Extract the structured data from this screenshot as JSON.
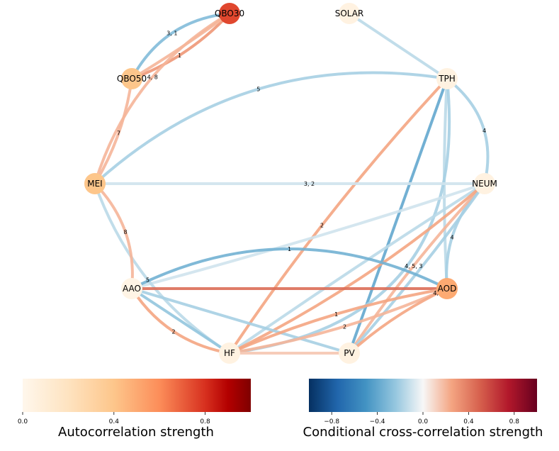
{
  "nodes": [
    {
      "id": "QBO30",
      "label": "QBO30",
      "auto": 0.75
    },
    {
      "id": "SOLAR",
      "label": "SOLAR",
      "auto": 0.05
    },
    {
      "id": "QBO50",
      "label": "QBO50",
      "auto": 0.4
    },
    {
      "id": "TPH",
      "label": "TPH",
      "auto": 0.05
    },
    {
      "id": "MEI",
      "label": "MEI",
      "auto": 0.4
    },
    {
      "id": "NEUM",
      "label": "NEUM",
      "auto": 0.05
    },
    {
      "id": "AAO",
      "label": "AAO",
      "auto": 0.03
    },
    {
      "id": "AOD",
      "label": "AOD",
      "auto": 0.5
    },
    {
      "id": "HF",
      "label": "HF",
      "auto": 0.05
    },
    {
      "id": "PV",
      "label": "PV",
      "auto": 0.05
    }
  ],
  "edges": [
    {
      "source": "QBO50",
      "target": "QBO30",
      "value": -0.3,
      "label": "3, 1"
    },
    {
      "source": "QBO50",
      "target": "QBO30",
      "value": 0.3,
      "label": "1"
    },
    {
      "source": "QBO50",
      "target": "QBO30",
      "value": 0.2,
      "label": ""
    },
    {
      "source": "MEI",
      "target": "QBO30",
      "value": 0.2,
      "label": "4, 8"
    },
    {
      "source": "MEI",
      "target": "QBO50",
      "value": 0.2,
      "label": "7"
    },
    {
      "source": "MEI",
      "target": "TPH",
      "value": -0.2,
      "label": "5"
    },
    {
      "source": "SOLAR",
      "target": "TPH",
      "value": -0.15,
      "label": ""
    },
    {
      "source": "TPH",
      "target": "NEUM",
      "value": -0.2,
      "label": "4"
    },
    {
      "source": "TPH",
      "target": "AOD",
      "value": -0.15,
      "label": ""
    },
    {
      "source": "TPH",
      "target": "PV",
      "value": -0.4,
      "label": ""
    },
    {
      "source": "TPH",
      "target": "HF",
      "value": -0.2,
      "label": ""
    },
    {
      "source": "TPH",
      "target": "HF",
      "value": 0.25,
      "label": "2"
    },
    {
      "source": "MEI",
      "target": "NEUM",
      "value": -0.1,
      "label": "3, 2"
    },
    {
      "source": "NEUM",
      "target": "AAO",
      "value": -0.1,
      "label": ""
    },
    {
      "source": "NEUM",
      "target": "AOD",
      "value": -0.2,
      "label": "4"
    },
    {
      "source": "NEUM",
      "target": "PV",
      "value": 0.2,
      "label": "4, 5, 3"
    },
    {
      "source": "NEUM",
      "target": "PV",
      "value": -0.2,
      "label": ""
    },
    {
      "source": "NEUM",
      "target": "HF",
      "value": -0.15,
      "label": ""
    },
    {
      "source": "NEUM",
      "target": "HF",
      "value": 0.25,
      "label": ""
    },
    {
      "source": "MEI",
      "target": "HF",
      "value": -0.15,
      "label": "5"
    },
    {
      "source": "MEI",
      "target": "AAO",
      "value": 0.2,
      "label": "8"
    },
    {
      "source": "AAO",
      "target": "AOD",
      "value": -0.35,
      "label": "1"
    },
    {
      "source": "AAO",
      "target": "AOD",
      "value": 0.45,
      "label": ""
    },
    {
      "source": "AAO",
      "target": "HF",
      "value": -0.25,
      "label": ""
    },
    {
      "source": "AAO",
      "target": "HF",
      "value": 0.25,
      "label": "2"
    },
    {
      "source": "AAO",
      "target": "PV",
      "value": -0.2,
      "label": ""
    },
    {
      "source": "HF",
      "target": "AOD",
      "value": 0.25,
      "label": "1"
    },
    {
      "source": "HF",
      "target": "AOD",
      "value": 0.2,
      "label": "2"
    },
    {
      "source": "HF",
      "target": "PV",
      "value": 0.15,
      "label": ""
    },
    {
      "source": "PV",
      "target": "AOD",
      "value": 0.25,
      "label": "4, 6"
    }
  ],
  "colorbars": {
    "auto": {
      "title": "Autocorrelation strength",
      "ticks": [
        "0.0",
        "0.4",
        "0.8"
      ],
      "tick_values": [
        0,
        0.4,
        0.8
      ],
      "range": [
        0,
        1.0
      ],
      "colormap": "OrRd"
    },
    "cross": {
      "title": "Conditional cross-correlation strength",
      "ticks": [
        "−0.8",
        "−0.4",
        "0.0",
        "0.4",
        "0.8"
      ],
      "tick_values": [
        -0.8,
        -0.4,
        0,
        0.4,
        0.8
      ],
      "range": [
        -1.0,
        1.0
      ],
      "colormap": "RdBu_r"
    }
  }
}
